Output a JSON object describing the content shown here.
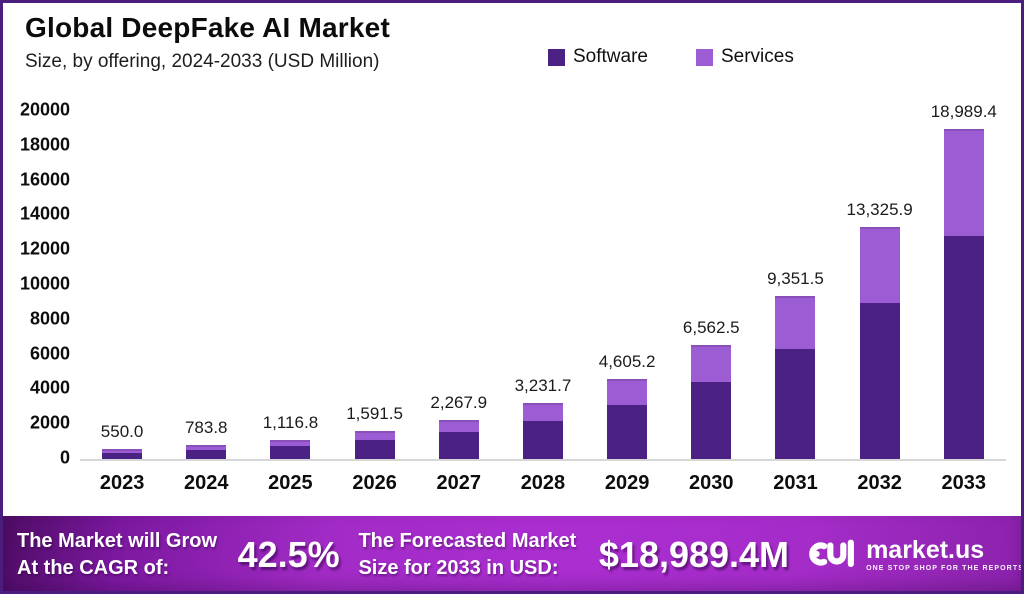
{
  "header": {
    "title": "Global DeepFake AI Market",
    "subtitle": "Size, by offering, 2024-2033 (USD Million)"
  },
  "legend": [
    {
      "label": "Software",
      "color": "#4b2184"
    },
    {
      "label": "Services",
      "color": "#9c5cd4"
    }
  ],
  "chart_data": {
    "type": "bar",
    "stacked": true,
    "title": "Global DeepFake AI Market",
    "subtitle": "Size, by offering, 2024-2033 (USD Million)",
    "categories": [
      "2023",
      "2024",
      "2025",
      "2026",
      "2027",
      "2028",
      "2029",
      "2030",
      "2031",
      "2032",
      "2033"
    ],
    "series": [
      {
        "name": "Software",
        "color": "#4b2184",
        "values": [
          371.3,
          529.1,
          753.8,
          1074.3,
          1530.8,
          2181.4,
          3108.5,
          4429.7,
          6312.3,
          8995.0,
          12817.8
        ]
      },
      {
        "name": "Services",
        "color": "#9c5cd4",
        "values": [
          178.7,
          254.7,
          363.0,
          517.2,
          737.1,
          1050.3,
          1496.7,
          2132.8,
          3039.2,
          4330.9,
          6171.6
        ]
      }
    ],
    "totals": [
      550.0,
      783.8,
      1116.8,
      1591.5,
      2267.9,
      3231.7,
      4605.2,
      6562.5,
      9351.5,
      13325.9,
      18989.4
    ],
    "total_labels": [
      "550.0",
      "783.8",
      "1,116.8",
      "1,591.5",
      "2,267.9",
      "3,231.7",
      "4,605.2",
      "6,562.5",
      "9,351.5",
      "13,325.9",
      "18,989.4"
    ],
    "ylabel": "",
    "xlabel": "",
    "ylim": [
      0,
      20000
    ],
    "ytick_step": 2000,
    "grid": false,
    "legend_position": "top"
  },
  "footer": {
    "cagr_line1": "The Market will Grow",
    "cagr_line2": "At the CAGR of:",
    "cagr_value": "42.5%",
    "forecast_line1": "The Forecasted Market",
    "forecast_line2": "Size for 2033 in USD:",
    "forecast_value": "$18,989.4M",
    "brand": "market.us",
    "brand_tagline": "ONE STOP SHOP FOR THE REPORTS"
  }
}
